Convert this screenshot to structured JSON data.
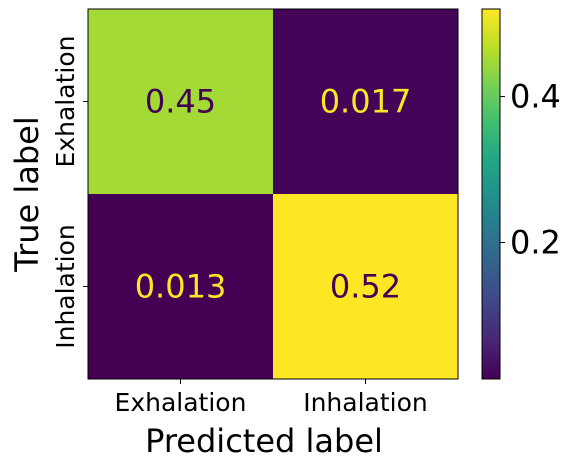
{
  "chart_data": {
    "type": "heatmap",
    "title": "",
    "xlabel": "Predicted label",
    "ylabel": "True label",
    "x_categories": [
      "Exhalation",
      "Inhalation"
    ],
    "y_categories": [
      "Exhalation",
      "Inhalation"
    ],
    "values": [
      [
        0.45,
        0.017
      ],
      [
        0.013,
        0.52
      ]
    ],
    "value_labels": [
      [
        "0.45",
        "0.017"
      ],
      [
        "0.013",
        "0.52"
      ]
    ],
    "colormap": "viridis",
    "colorbar": {
      "ticks": [
        0.2,
        0.4
      ],
      "tick_labels": [
        "0.2",
        "0.4"
      ],
      "range": [
        0.013,
        0.52
      ]
    },
    "grid": false,
    "colors": {
      "low": "#440154",
      "high": "#fde725",
      "text_on_dark": "#fde725",
      "text_on_light": "#440154"
    }
  }
}
